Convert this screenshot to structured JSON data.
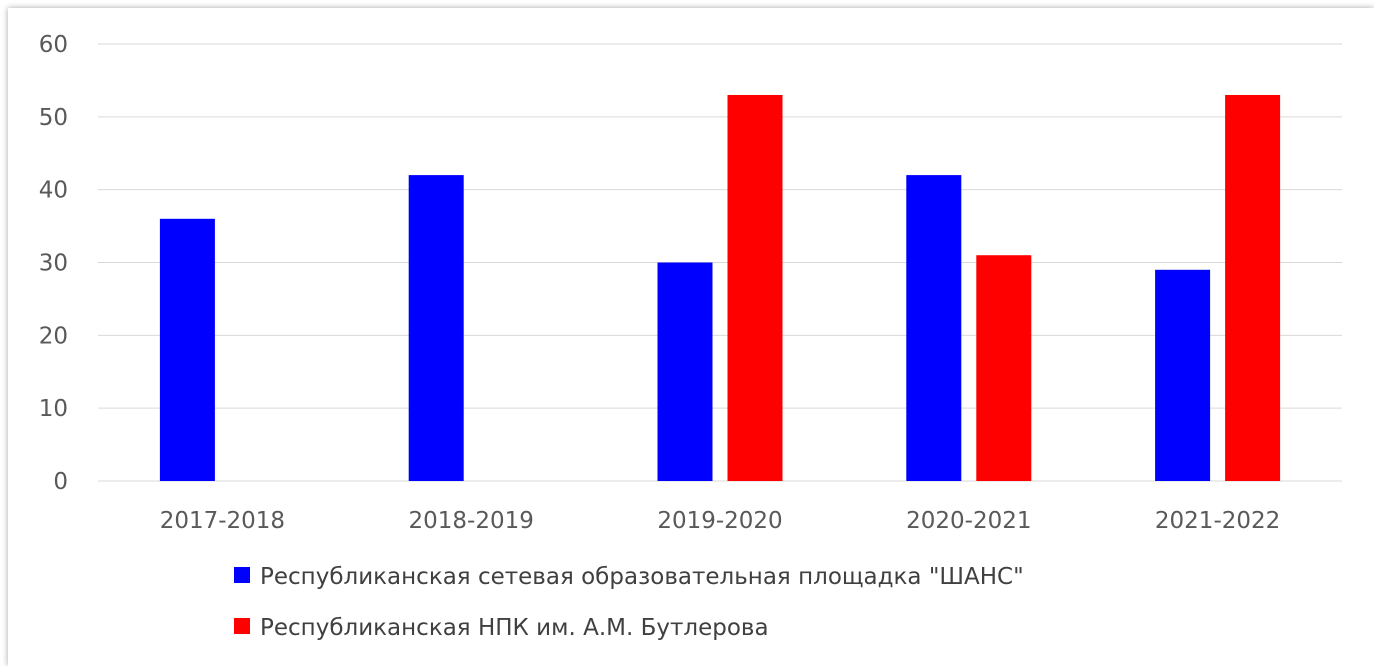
{
  "chart_data": {
    "type": "bar",
    "categories": [
      "2017-2018",
      "2018-2019",
      "2019-2020",
      "2020-2021",
      "2021-2022"
    ],
    "series": [
      {
        "name": "Республиканская сетевая образовательная площадка \"ШАНС\"",
        "values": [
          36,
          42,
          30,
          42,
          29
        ],
        "color": "#0000ff"
      },
      {
        "name": "Республиканская НПК им. А.М. Бутлерова",
        "values": [
          null,
          null,
          53,
          31,
          53
        ],
        "color": "#ff0000"
      }
    ],
    "yticks": [
      "0",
      "10",
      "20",
      "30",
      "40",
      "50",
      "60"
    ],
    "ylim": [
      0,
      60
    ],
    "grid": true,
    "legend_position": "bottom",
    "title": "",
    "xlabel": "",
    "ylabel": ""
  }
}
